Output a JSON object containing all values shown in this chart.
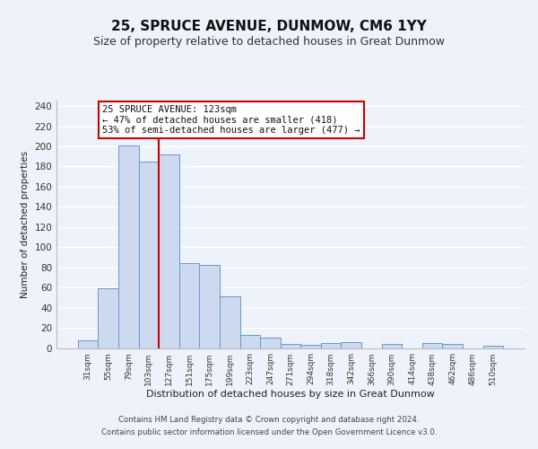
{
  "title": "25, SPRUCE AVENUE, DUNMOW, CM6 1YY",
  "subtitle": "Size of property relative to detached houses in Great Dunmow",
  "xlabel": "Distribution of detached houses by size in Great Dunmow",
  "ylabel": "Number of detached properties",
  "bar_labels": [
    "31sqm",
    "55sqm",
    "79sqm",
    "103sqm",
    "127sqm",
    "151sqm",
    "175sqm",
    "199sqm",
    "223sqm",
    "247sqm",
    "271sqm",
    "294sqm",
    "318sqm",
    "342sqm",
    "366sqm",
    "390sqm",
    "414sqm",
    "438sqm",
    "462sqm",
    "486sqm",
    "510sqm"
  ],
  "bar_values": [
    8,
    59,
    201,
    185,
    192,
    84,
    82,
    51,
    13,
    10,
    4,
    3,
    5,
    6,
    0,
    4,
    0,
    5,
    4,
    0,
    2
  ],
  "bar_color": "#ccd9ef",
  "bar_edge_color": "#6699cc",
  "vline_color": "#cc0000",
  "annotation_title": "25 SPRUCE AVENUE: 123sqm",
  "annotation_line1": "← 47% of detached houses are smaller (418)",
  "annotation_line2": "53% of semi-detached houses are larger (477) →",
  "annotation_box_color": "#ffffff",
  "annotation_box_edge": "#cc0000",
  "ylim": [
    0,
    245
  ],
  "yticks": [
    0,
    20,
    40,
    60,
    80,
    100,
    120,
    140,
    160,
    180,
    200,
    220,
    240
  ],
  "footer_line1": "Contains HM Land Registry data © Crown copyright and database right 2024.",
  "footer_line2": "Contains public sector information licensed under the Open Government Licence v3.0.",
  "bg_color": "#eef2fa",
  "plot_bg_color": "#eef2fa",
  "grid_color": "#ffffff",
  "title_fontsize": 11,
  "subtitle_fontsize": 9
}
